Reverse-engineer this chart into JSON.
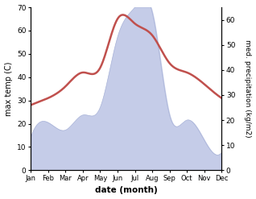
{
  "months": [
    "Jan",
    "Feb",
    "Mar",
    "Apr",
    "May",
    "Jun",
    "Jul",
    "Aug",
    "Sep",
    "Oct",
    "Nov",
    "Dec"
  ],
  "temp": [
    28,
    31,
    36,
    42,
    44,
    65,
    63,
    58,
    46,
    42,
    37,
    31
  ],
  "precip": [
    13,
    19,
    16,
    22,
    25,
    53,
    65,
    63,
    22,
    20,
    12,
    7
  ],
  "temp_color": "#c0504d",
  "precip_fill_color": "#c5cce8",
  "precip_line_color": "#aab4d8",
  "temp_ylim": [
    0,
    70
  ],
  "precip_ylim": [
    0,
    65
  ],
  "temp_yticks": [
    0,
    10,
    20,
    30,
    40,
    50,
    60,
    70
  ],
  "precip_yticks": [
    0,
    10,
    20,
    30,
    40,
    50,
    60
  ],
  "ylabel_left": "max temp (C)",
  "ylabel_right": "med. precipitation (kg/m2)",
  "xlabel": "date (month)",
  "bg_color": "#ffffff",
  "temp_lw": 1.8
}
